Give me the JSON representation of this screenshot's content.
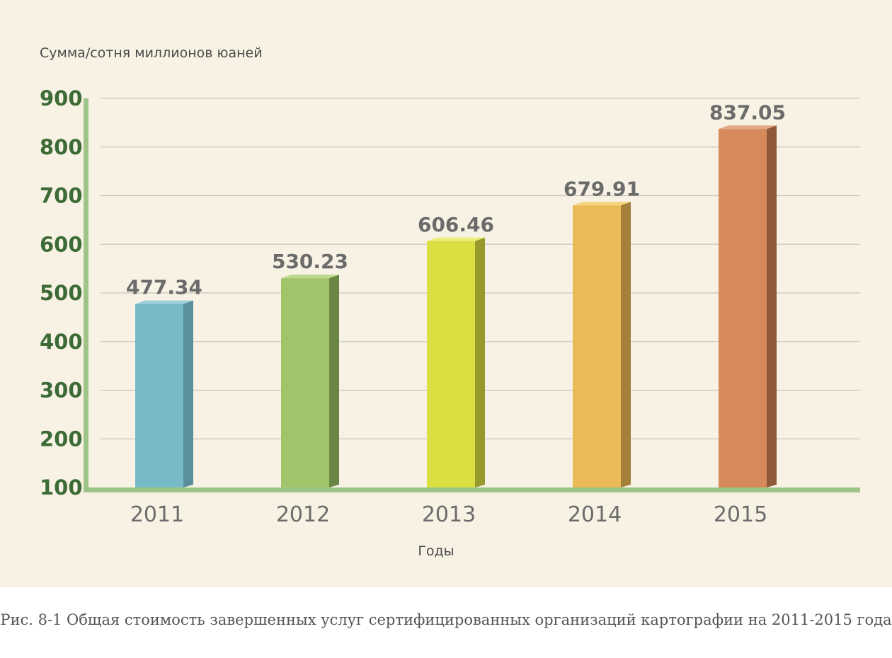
{
  "chart_data": {
    "type": "bar",
    "categories": [
      "2011",
      "2012",
      "2013",
      "2014",
      "2015"
    ],
    "values": [
      477.34,
      530.23,
      606.46,
      679.91,
      837.05
    ],
    "value_labels": [
      "477.34",
      "530.23",
      "606.46",
      "679.91",
      "837.05"
    ],
    "yticks": [
      "100",
      "200",
      "300",
      "400",
      "500",
      "600",
      "700",
      "800",
      "900"
    ],
    "ylim": [
      100,
      900
    ],
    "ylabel": "Сумма/сотня миллионов юаней",
    "xlabel": "Годы",
    "grid": true,
    "bar_colors": [
      "#78bbc8",
      "#a1c46a",
      "#dbdf42",
      "#eaba57",
      "#d6895a"
    ],
    "bar_side_colors": [
      "#5a8f9b",
      "#6a8644",
      "#97992c",
      "#a5803a",
      "#8f5a3a"
    ],
    "bar_top_colors": [
      "#9dd0dc",
      "#bcd88c",
      "#ebee78",
      "#f5d67c",
      "#e6a986"
    ],
    "axis_color": "#9fc487"
  },
  "caption": "Рис. 8-1 Общая стоимость завершенных услуг сертифицированных организаций картографии на 2011-2015 года"
}
